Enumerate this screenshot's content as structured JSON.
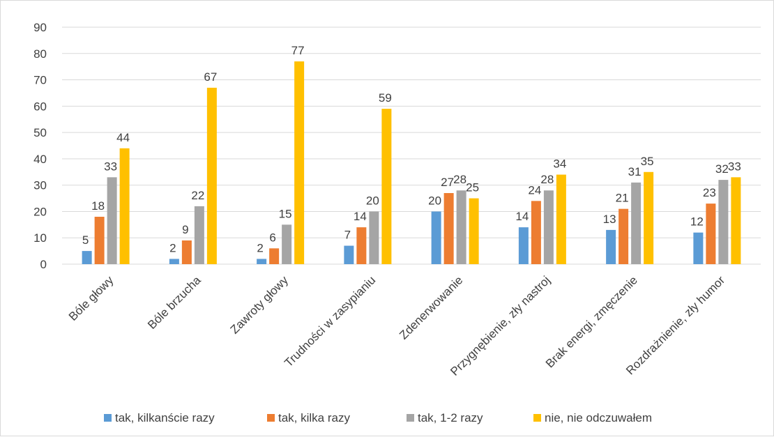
{
  "chart_data": {
    "type": "bar",
    "title": "",
    "xlabel": "",
    "ylabel": "",
    "ylim": [
      0,
      90
    ],
    "yticks": [
      0,
      10,
      20,
      30,
      40,
      50,
      60,
      70,
      80,
      90
    ],
    "grid": true,
    "legend_position": "bottom",
    "categories": [
      "Bóle głowy",
      "Bóle brzucha",
      "Zawroty głowy",
      "Trudności w zasypianiu",
      "Zdenerwowanie",
      "Przygnębienie, zły nastroj",
      "Brak energi, zmęczenie",
      "Rozdrażnienie, zły humor"
    ],
    "series": [
      {
        "name": "tak, kilkanście razy",
        "color": "#5b9bd5",
        "values": [
          5,
          2,
          2,
          7,
          20,
          14,
          13,
          12
        ]
      },
      {
        "name": "tak, kilka razy",
        "color": "#ed7d31",
        "values": [
          18,
          9,
          6,
          14,
          27,
          24,
          21,
          23
        ]
      },
      {
        "name": "tak, 1-2 razy",
        "color": "#a5a5a5",
        "values": [
          33,
          22,
          15,
          20,
          28,
          28,
          31,
          32
        ]
      },
      {
        "name": "nie, nie odczuwałem",
        "color": "#ffc000",
        "values": [
          44,
          67,
          77,
          59,
          25,
          34,
          35,
          33
        ]
      }
    ]
  }
}
